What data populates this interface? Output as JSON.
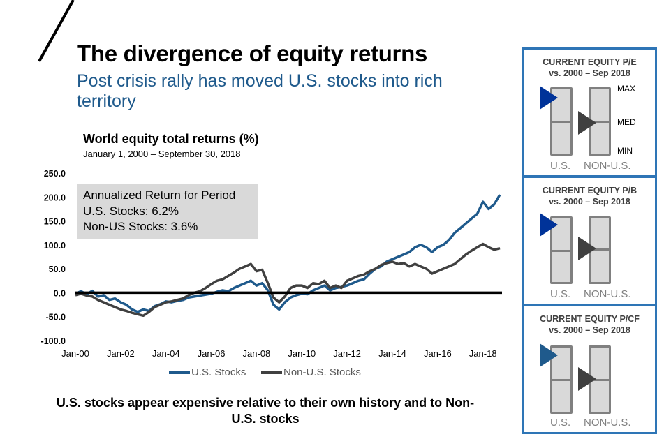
{
  "header": {
    "title": "The divergence of equity returns",
    "subtitle": "Post crisis rally has moved U.S. stocks into rich territory"
  },
  "chart_data": {
    "type": "line",
    "title": "World equity total returns (%)",
    "subtitle": "January 1, 2000 – September 30, 2018",
    "xlabel": "",
    "ylabel": "",
    "ylim": [
      -100,
      250
    ],
    "yticks": [
      "250.0",
      "200.0",
      "150.0",
      "100.0",
      "50.0",
      "0.0",
      "-50.0",
      "-100.0"
    ],
    "ytick_values": [
      250,
      200,
      150,
      100,
      50,
      0,
      -50,
      -100
    ],
    "xticks": [
      "Jan-00",
      "Jan-02",
      "Jan-04",
      "Jan-06",
      "Jan-08",
      "Jan-10",
      "Jan-12",
      "Jan-14",
      "Jan-16",
      "Jan-18"
    ],
    "xtick_values": [
      2000,
      2002,
      2004,
      2006,
      2008,
      2010,
      2012,
      2014,
      2016,
      2018
    ],
    "xlim": [
      2000,
      2018.75
    ],
    "legend_position": "bottom",
    "x": [
      2000.0,
      2000.25,
      2000.5,
      2000.75,
      2001.0,
      2001.25,
      2001.5,
      2001.75,
      2002.0,
      2002.25,
      2002.5,
      2002.75,
      2003.0,
      2003.25,
      2003.5,
      2003.75,
      2004.0,
      2004.25,
      2004.5,
      2004.75,
      2005.0,
      2005.25,
      2005.5,
      2005.75,
      2006.0,
      2006.25,
      2006.5,
      2006.75,
      2007.0,
      2007.25,
      2007.5,
      2007.75,
      2008.0,
      2008.25,
      2008.5,
      2008.75,
      2009.0,
      2009.25,
      2009.5,
      2009.75,
      2010.0,
      2010.25,
      2010.5,
      2010.75,
      2011.0,
      2011.25,
      2011.5,
      2011.75,
      2012.0,
      2012.25,
      2012.5,
      2012.75,
      2013.0,
      2013.25,
      2013.5,
      2013.75,
      2014.0,
      2014.25,
      2014.5,
      2014.75,
      2015.0,
      2015.25,
      2015.5,
      2015.75,
      2016.0,
      2016.25,
      2016.5,
      2016.75,
      2017.0,
      2017.25,
      2017.5,
      2017.75,
      2018.0,
      2018.25,
      2018.5,
      2018.75
    ],
    "series": [
      {
        "name": "U.S. Stocks",
        "color": "#1f5a8c",
        "values": [
          -2,
          3,
          -3,
          4,
          -8,
          -5,
          -15,
          -12,
          -20,
          -25,
          -35,
          -40,
          -35,
          -38,
          -28,
          -24,
          -18,
          -20,
          -17,
          -15,
          -10,
          -8,
          -6,
          -4,
          -2,
          2,
          5,
          3,
          10,
          15,
          20,
          25,
          15,
          20,
          5,
          -25,
          -35,
          -20,
          -10,
          -5,
          -2,
          -3,
          5,
          10,
          15,
          5,
          10,
          12,
          15,
          20,
          25,
          28,
          40,
          50,
          55,
          65,
          70,
          75,
          80,
          85,
          95,
          100,
          95,
          85,
          95,
          100,
          110,
          125,
          135,
          145,
          155,
          165,
          190,
          175,
          185,
          205
        ]
      },
      {
        "name": "Non-U.S. Stocks",
        "color": "#404040",
        "values": [
          -5,
          -2,
          -6,
          -8,
          -15,
          -20,
          -25,
          -30,
          -35,
          -38,
          -42,
          -45,
          -48,
          -40,
          -30,
          -25,
          -20,
          -18,
          -15,
          -12,
          -5,
          0,
          3,
          10,
          18,
          25,
          28,
          35,
          42,
          50,
          55,
          60,
          45,
          48,
          20,
          -10,
          -20,
          -8,
          10,
          15,
          15,
          10,
          20,
          18,
          25,
          10,
          15,
          10,
          25,
          30,
          35,
          38,
          45,
          50,
          58,
          62,
          65,
          60,
          62,
          55,
          60,
          55,
          50,
          40,
          45,
          50,
          55,
          60,
          70,
          80,
          88,
          95,
          102,
          95,
          90,
          93
        ]
      }
    ],
    "annotation": {
      "heading": "Annualized Return for Period",
      "us": "U.S. Stocks: 6.2%",
      "non_us": "Non-US Stocks: 3.6%"
    },
    "legend": [
      "U.S. Stocks",
      "Non-U.S. Stocks"
    ]
  },
  "conclusion": "U.S. stocks appear expensive relative to their own history and to Non-U.S. stocks",
  "panels": [
    {
      "title_line1": "CURRENT EQUITY P/E",
      "title_line2": "vs. 2000 – Sep 2018",
      "us_level": 0.85,
      "non_us_level": 0.5,
      "show_scale": true
    },
    {
      "title_line1": "CURRENT EQUITY P/B",
      "title_line2": "vs. 2000 – Sep 2018",
      "us_level": 0.9,
      "non_us_level": 0.55,
      "show_scale": false
    },
    {
      "title_line1": "CURRENT EQUITY P/CF",
      "title_line2": "vs. 2000 – Sep 2018",
      "us_level": 0.9,
      "non_us_level": 0.55,
      "show_scale": false
    }
  ],
  "panel_labels": {
    "us": "U.S.",
    "non_us": "NON-U.S.",
    "max": "MAX",
    "med": "MED",
    "min": "MIN"
  },
  "colors": {
    "us": "#1f5a8c",
    "non_us": "#404040",
    "panel_border": "#2e75b6",
    "us_marker": "#003399"
  }
}
